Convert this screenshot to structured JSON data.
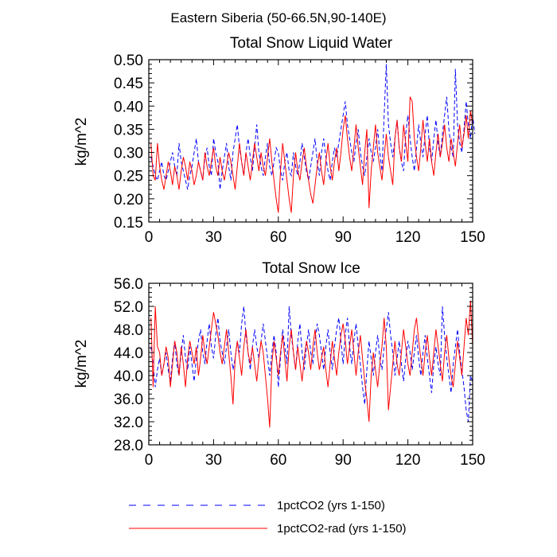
{
  "figure_title": "Eastern Siberia (50-66.5N,90-140E)",
  "chart_data": [
    {
      "type": "line",
      "title": "Total Snow Liquid Water",
      "xlabel": "",
      "ylabel": "kg/m^2",
      "xlim": [
        0,
        150
      ],
      "ylim": [
        0.15,
        0.5
      ],
      "xticks": [
        0,
        30,
        60,
        90,
        120,
        150
      ],
      "yticks": [
        0.15,
        0.2,
        0.25,
        0.3,
        0.35,
        0.4,
        0.45,
        0.5
      ],
      "ytick_labels": [
        "0.15",
        "0.20",
        "0.25",
        "0.30",
        "0.35",
        "0.40",
        "0.45",
        "0.50"
      ],
      "series": [
        {
          "name": "1pctCO2 (yrs 1-150)",
          "color": "#0000ff",
          "dash": "dashed",
          "values": [
            0.29,
            0.27,
            0.25,
            0.24,
            0.26,
            0.28,
            0.25,
            0.24,
            0.26,
            0.28,
            0.3,
            0.27,
            0.25,
            0.32,
            0.28,
            0.26,
            0.24,
            0.22,
            0.25,
            0.27,
            0.3,
            0.33,
            0.28,
            0.26,
            0.24,
            0.29,
            0.31,
            0.27,
            0.25,
            0.33,
            0.3,
            0.28,
            0.22,
            0.26,
            0.29,
            0.32,
            0.27,
            0.24,
            0.3,
            0.33,
            0.36,
            0.31,
            0.28,
            0.25,
            0.3,
            0.33,
            0.29,
            0.26,
            0.31,
            0.36,
            0.3,
            0.27,
            0.25,
            0.29,
            0.32,
            0.27,
            0.25,
            0.28,
            0.31,
            0.3,
            0.26,
            0.24,
            0.28,
            0.3,
            0.26,
            0.25,
            0.3,
            0.27,
            0.25,
            0.28,
            0.32,
            0.29,
            0.26,
            0.24,
            0.27,
            0.3,
            0.33,
            0.28,
            0.25,
            0.3,
            0.33,
            0.29,
            0.26,
            0.24,
            0.28,
            0.31,
            0.29,
            0.32,
            0.35,
            0.38,
            0.41,
            0.36,
            0.33,
            0.3,
            0.28,
            0.32,
            0.35,
            0.3,
            0.27,
            0.25,
            0.29,
            0.33,
            0.3,
            0.28,
            0.31,
            0.35,
            0.3,
            0.26,
            0.38,
            0.49,
            0.36,
            0.32,
            0.29,
            0.33,
            0.37,
            0.31,
            0.28,
            0.26,
            0.34,
            0.38,
            0.33,
            0.29,
            0.26,
            0.31,
            0.36,
            0.32,
            0.29,
            0.34,
            0.38,
            0.31,
            0.28,
            0.33,
            0.37,
            0.32,
            0.29,
            0.34,
            0.38,
            0.42,
            0.35,
            0.31,
            0.29,
            0.48,
            0.36,
            0.32,
            0.3,
            0.35,
            0.41,
            0.36,
            0.33,
            0.38,
            0.34
          ]
        },
        {
          "name": "1pctCO2-rad (yrs 1-150)",
          "color": "#ff0000",
          "dash": "solid",
          "values": [
            0.32,
            0.25,
            0.24,
            0.32,
            0.27,
            0.24,
            0.22,
            0.25,
            0.28,
            0.26,
            0.23,
            0.27,
            0.25,
            0.22,
            0.26,
            0.29,
            0.27,
            0.24,
            0.28,
            0.26,
            0.23,
            0.25,
            0.28,
            0.26,
            0.24,
            0.3,
            0.27,
            0.25,
            0.28,
            0.31,
            0.27,
            0.25,
            0.29,
            0.26,
            0.24,
            0.27,
            0.3,
            0.28,
            0.25,
            0.22,
            0.27,
            0.32,
            0.28,
            0.25,
            0.3,
            0.27,
            0.24,
            0.28,
            0.32,
            0.29,
            0.26,
            0.3,
            0.27,
            0.25,
            0.29,
            0.33,
            0.28,
            0.24,
            0.2,
            0.17,
            0.26,
            0.32,
            0.28,
            0.24,
            0.2,
            0.17,
            0.25,
            0.3,
            0.26,
            0.24,
            0.28,
            0.31,
            0.27,
            0.24,
            0.21,
            0.19,
            0.23,
            0.27,
            0.3,
            0.26,
            0.23,
            0.28,
            0.32,
            0.27,
            0.24,
            0.28,
            0.31,
            0.26,
            0.3,
            0.35,
            0.38,
            0.33,
            0.29,
            0.26,
            0.31,
            0.36,
            0.31,
            0.27,
            0.23,
            0.3,
            0.35,
            0.18,
            0.26,
            0.31,
            0.36,
            0.3,
            0.27,
            0.24,
            0.29,
            0.34,
            0.29,
            0.26,
            0.23,
            0.33,
            0.37,
            0.31,
            0.28,
            0.36,
            0.32,
            0.28,
            0.42,
            0.41,
            0.33,
            0.29,
            0.26,
            0.31,
            0.37,
            0.32,
            0.28,
            0.33,
            0.28,
            0.25,
            0.3,
            0.34,
            0.29,
            0.32,
            0.36,
            0.31,
            0.28,
            0.33,
            0.3,
            0.27,
            0.32,
            0.36,
            0.31,
            0.34,
            0.38,
            0.33,
            0.39,
            0.36
          ]
        }
      ]
    },
    {
      "type": "line",
      "title": "Total Snow Ice",
      "xlabel": "",
      "ylabel": "kg/m^2",
      "xlim": [
        0,
        150
      ],
      "ylim": [
        28,
        56
      ],
      "xticks": [
        0,
        30,
        60,
        90,
        120,
        150
      ],
      "yticks": [
        28,
        32,
        36,
        40,
        44,
        48,
        52,
        56
      ],
      "ytick_labels": [
        "28.0",
        "32.0",
        "36.0",
        "40.0",
        "44.0",
        "48.0",
        "52.0",
        "56.0"
      ],
      "series": [
        {
          "name": "1pctCO2 (yrs 1-150)",
          "color": "#0000ff",
          "dash": "dashed",
          "values": [
            45,
            42,
            38,
            41,
            43,
            40,
            42,
            44,
            41,
            39,
            43,
            46,
            42,
            40,
            44,
            47,
            43,
            41,
            45,
            42,
            39,
            43,
            46,
            48,
            44,
            42,
            46,
            49,
            45,
            43,
            47,
            50,
            46,
            44,
            42,
            45,
            48,
            44,
            41,
            43,
            46,
            44,
            49,
            52,
            47,
            44,
            41,
            45,
            48,
            45,
            43,
            46,
            49,
            46,
            43,
            40,
            44,
            47,
            44,
            38,
            43,
            48,
            45,
            42,
            52,
            47,
            44,
            41,
            46,
            49,
            44,
            41,
            45,
            48,
            44,
            42,
            46,
            49,
            47,
            44,
            41,
            45,
            48,
            44,
            41,
            45,
            48,
            50,
            46,
            42,
            47,
            50,
            45,
            42,
            46,
            49,
            45,
            42,
            38,
            35,
            41,
            46,
            43,
            40,
            44,
            47,
            43,
            41,
            45,
            48,
            51,
            47,
            44,
            40,
            43,
            46,
            42,
            39,
            43,
            46,
            44,
            41,
            44,
            47,
            43,
            40,
            44,
            47,
            43,
            40,
            37,
            42,
            45,
            42,
            40,
            52,
            47,
            43,
            40,
            37,
            42,
            45,
            48,
            44,
            41,
            38,
            34,
            32,
            40,
            39
          ]
        },
        {
          "name": "1pctCO2-rad (yrs 1-150)",
          "color": "#ff0000",
          "dash": "solid",
          "values": [
            50,
            38,
            52,
            45,
            44,
            40,
            42,
            45,
            43,
            38,
            42,
            46,
            44,
            40,
            45,
            42,
            38,
            43,
            46,
            44,
            42,
            45,
            40,
            43,
            47,
            44,
            42,
            45,
            48,
            51,
            49,
            47,
            44,
            42,
            45,
            48,
            44,
            40,
            35,
            43,
            46,
            43,
            40,
            45,
            48,
            44,
            42,
            45,
            42,
            39,
            43,
            46,
            44,
            40,
            36,
            31,
            42,
            46,
            43,
            40,
            44,
            47,
            43,
            39,
            45,
            48,
            44,
            41,
            45,
            42,
            39,
            43,
            46,
            44,
            41,
            45,
            48,
            44,
            41,
            43,
            45,
            41,
            38,
            42,
            46,
            43,
            40,
            44,
            47,
            49,
            46,
            42,
            45,
            48,
            44,
            40,
            44,
            47,
            43,
            39,
            36,
            32,
            40,
            44,
            41,
            38,
            42,
            45,
            50,
            45,
            34,
            38,
            42,
            46,
            42,
            40,
            44,
            48,
            45,
            42,
            40,
            44,
            48,
            50,
            46,
            43,
            40,
            44,
            47,
            43,
            40,
            44,
            48,
            45,
            42,
            39,
            44,
            47,
            43,
            40,
            38,
            42,
            46,
            43,
            40,
            45,
            50,
            47,
            53,
            45
          ]
        }
      ]
    }
  ],
  "legend": [
    {
      "label": "1pctCO2 (yrs 1-150)",
      "color": "#0000ff",
      "dash": "dashed"
    },
    {
      "label": "1pctCO2-rad (yrs 1-150)",
      "color": "#ff0000",
      "dash": "solid"
    }
  ]
}
